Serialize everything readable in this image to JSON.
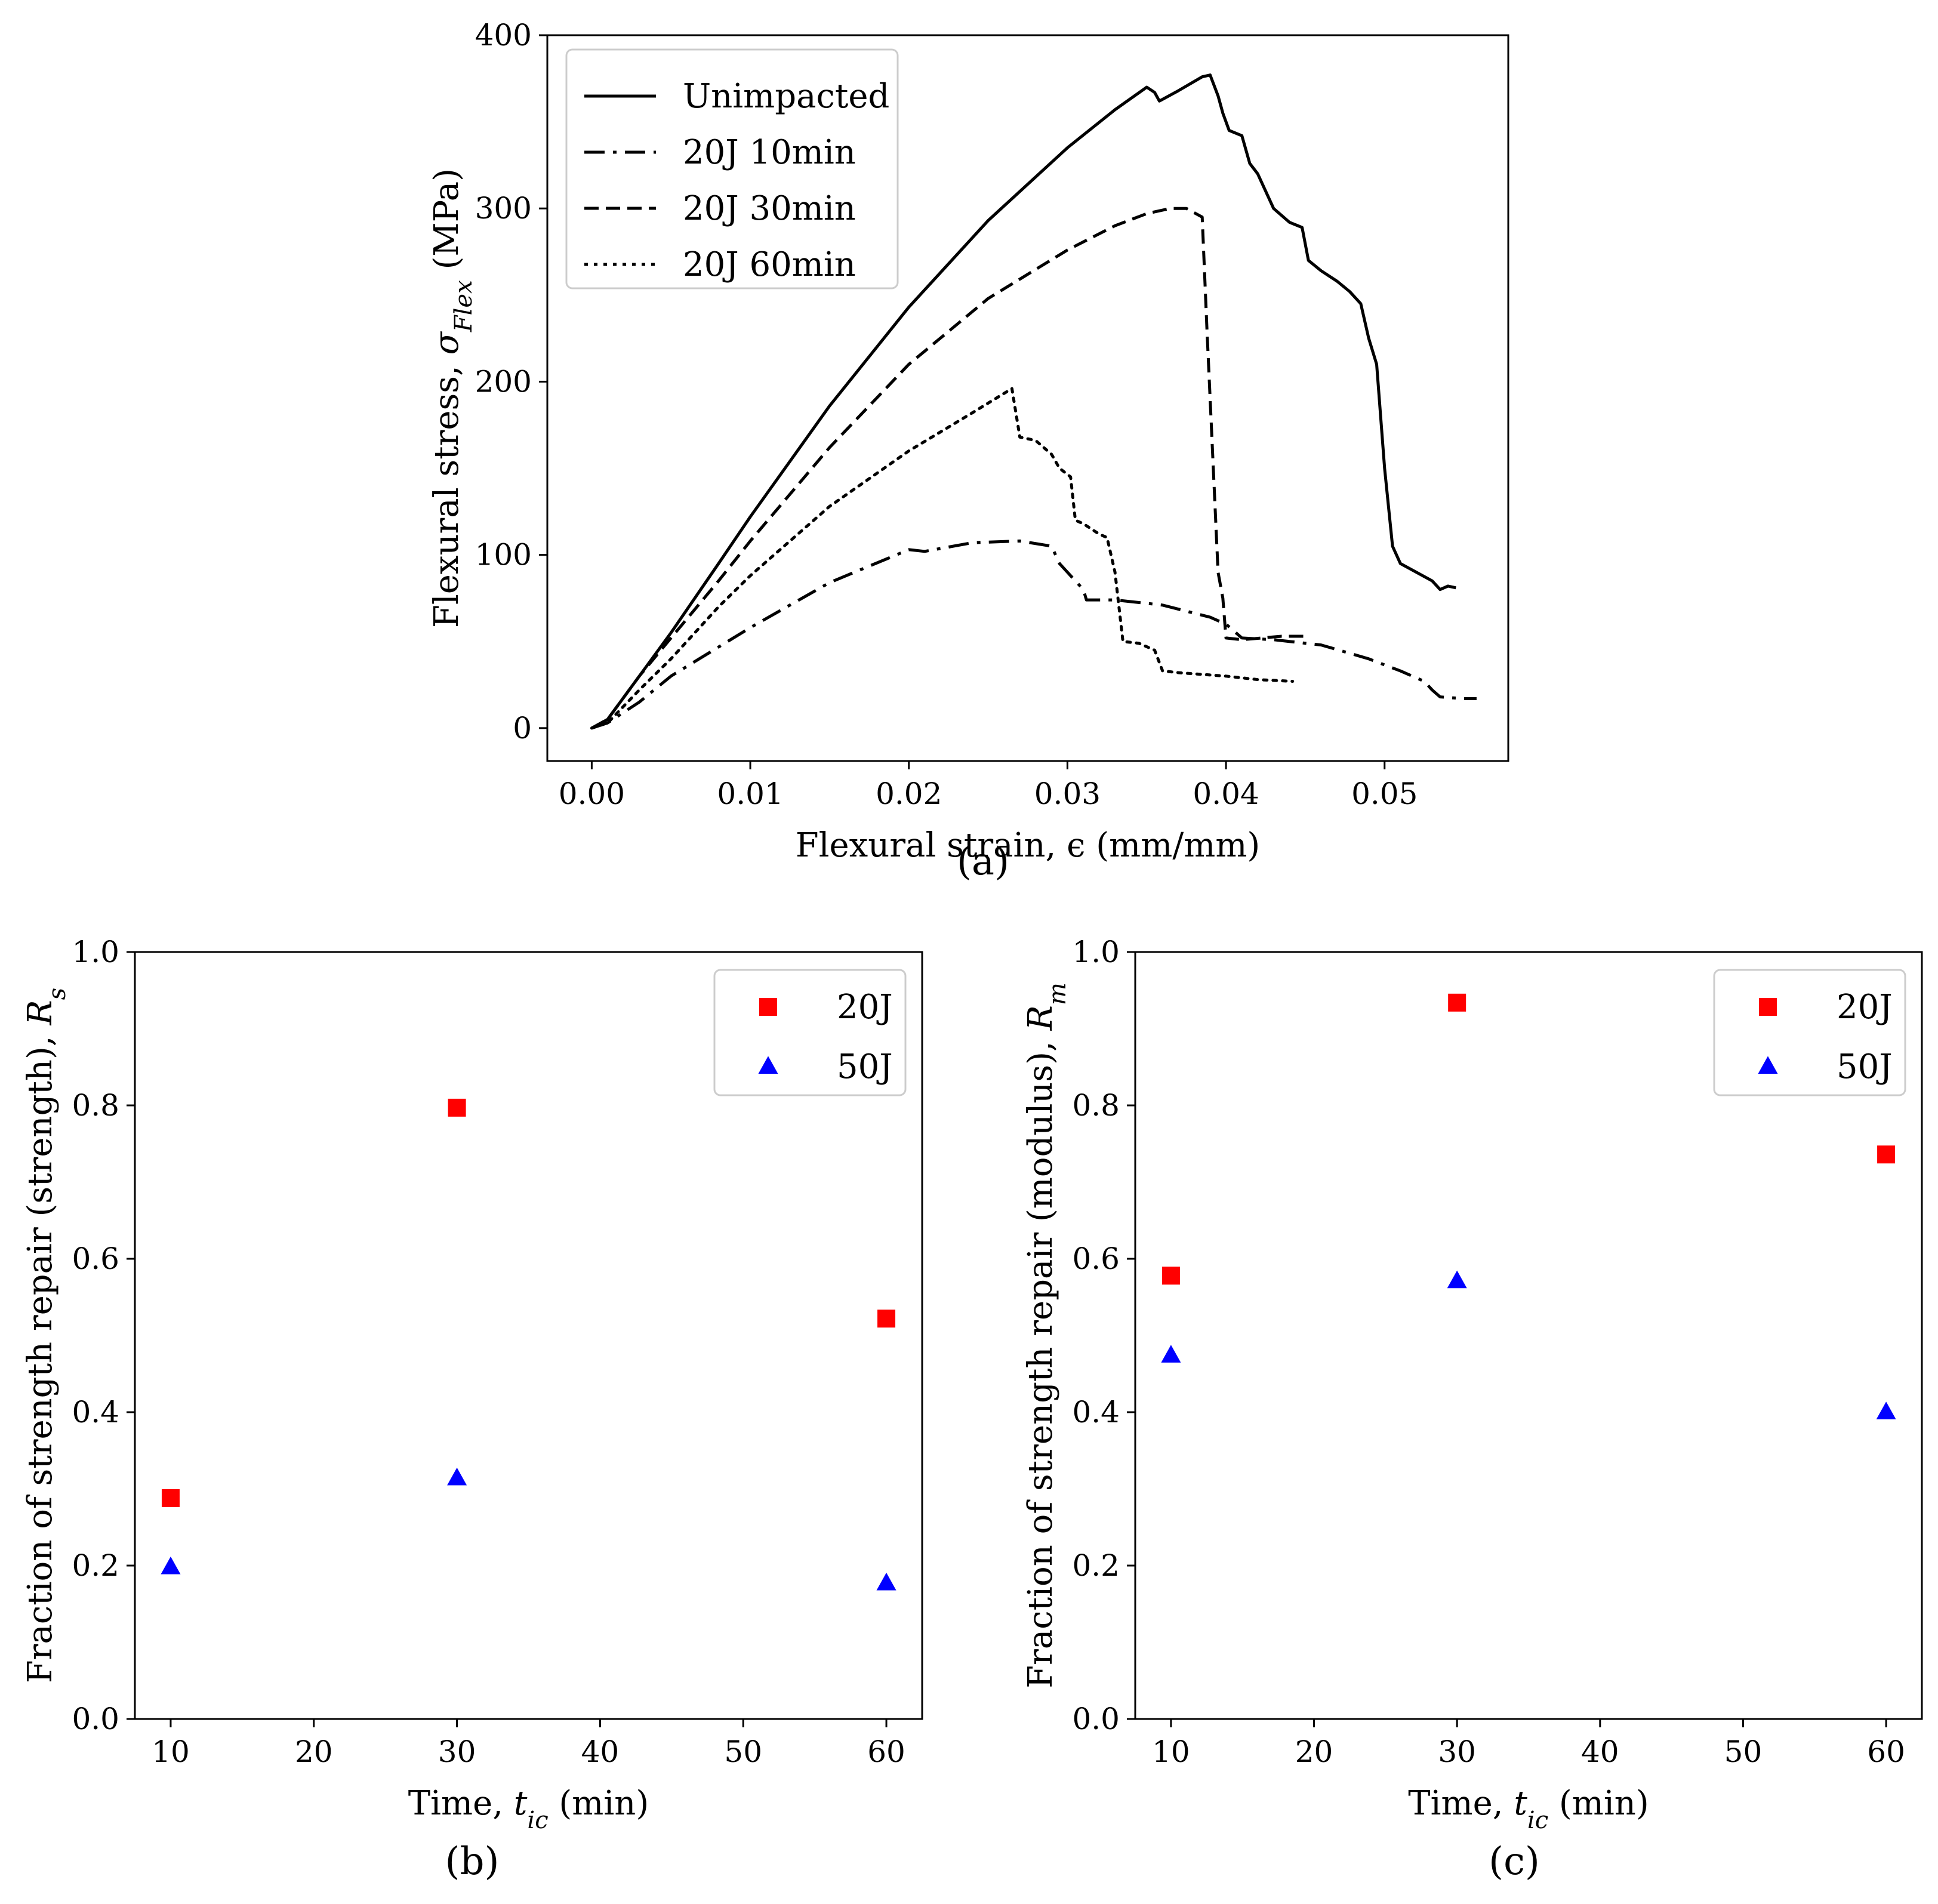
{
  "chart_data": [
    {
      "type": "line",
      "caption": "(a)",
      "xlabel": "Flexural strain, ϵ (mm/mm)",
      "ylabel": "Flexural stress, σFlex (MPa)",
      "ylabel_parts": {
        "main": "Flexural stress,  ",
        "sym": "σ",
        "sub": "Flex",
        "unit": " (MPa)"
      },
      "xlim": [
        -0.0028,
        0.0578
      ],
      "ylim": [
        -19,
        400
      ],
      "xticks": [
        0.0,
        0.01,
        0.02,
        0.03,
        0.04,
        0.05
      ],
      "xtick_labels": [
        "0.00",
        "0.01",
        "0.02",
        "0.03",
        "0.04",
        "0.05"
      ],
      "yticks": [
        0,
        100,
        200,
        300,
        400
      ],
      "ytick_labels": [
        "0",
        "100",
        "200",
        "300",
        "400"
      ],
      "legend": "top-left",
      "grid": false,
      "series": [
        {
          "name": "Unimpacted",
          "dash": "solid",
          "points": [
            [
              0,
              0
            ],
            [
              0.001,
              5
            ],
            [
              0.003,
              30
            ],
            [
              0.005,
              55
            ],
            [
              0.008,
              95
            ],
            [
              0.01,
              122
            ],
            [
              0.015,
              186
            ],
            [
              0.02,
              243
            ],
            [
              0.025,
              293
            ],
            [
              0.03,
              335
            ],
            [
              0.033,
              357
            ],
            [
              0.035,
              370
            ],
            [
              0.0355,
              367
            ],
            [
              0.0358,
              362
            ],
            [
              0.037,
              368
            ],
            [
              0.0385,
              376
            ],
            [
              0.039,
              377
            ],
            [
              0.0395,
              365
            ],
            [
              0.0398,
              355
            ],
            [
              0.0402,
              345
            ],
            [
              0.041,
              342
            ],
            [
              0.0415,
              326
            ],
            [
              0.042,
              320
            ],
            [
              0.043,
              300
            ],
            [
              0.044,
              292
            ],
            [
              0.0448,
              289
            ],
            [
              0.0452,
              270
            ],
            [
              0.046,
              264
            ],
            [
              0.047,
              258
            ],
            [
              0.0478,
              252
            ],
            [
              0.0485,
              245
            ],
            [
              0.049,
              225
            ],
            [
              0.0495,
              210
            ],
            [
              0.05,
              150
            ],
            [
              0.0505,
              105
            ],
            [
              0.051,
              95
            ],
            [
              0.052,
              90
            ],
            [
              0.053,
              85
            ],
            [
              0.0535,
              80
            ],
            [
              0.054,
              82
            ],
            [
              0.0545,
              81
            ]
          ]
        },
        {
          "name": "20J 10min",
          "dash": "dashdot",
          "points": [
            [
              0,
              0
            ],
            [
              0.001,
              3
            ],
            [
              0.003,
              15
            ],
            [
              0.005,
              30
            ],
            [
              0.01,
              58
            ],
            [
              0.015,
              84
            ],
            [
              0.02,
              103
            ],
            [
              0.021,
              102
            ],
            [
              0.024,
              107
            ],
            [
              0.027,
              108
            ],
            [
              0.029,
              105
            ],
            [
              0.0295,
              95
            ],
            [
              0.03,
              90
            ],
            [
              0.031,
              80
            ],
            [
              0.0312,
              74
            ],
            [
              0.033,
              74
            ],
            [
              0.036,
              71
            ],
            [
              0.039,
              64
            ],
            [
              0.04,
              60
            ],
            [
              0.041,
              52
            ],
            [
              0.043,
              51
            ],
            [
              0.046,
              48
            ],
            [
              0.049,
              40
            ],
            [
              0.051,
              33
            ],
            [
              0.0525,
              27
            ],
            [
              0.053,
              22
            ],
            [
              0.0535,
              18
            ],
            [
              0.055,
              17
            ],
            [
              0.0558,
              17
            ]
          ]
        },
        {
          "name": "20J 30min",
          "dash": "dashed",
          "points": [
            [
              0,
              0
            ],
            [
              0.001,
              5
            ],
            [
              0.003,
              30
            ],
            [
              0.005,
              52
            ],
            [
              0.008,
              85
            ],
            [
              0.01,
              108
            ],
            [
              0.015,
              162
            ],
            [
              0.02,
              210
            ],
            [
              0.025,
              248
            ],
            [
              0.03,
              276
            ],
            [
              0.033,
              290
            ],
            [
              0.035,
              297
            ],
            [
              0.0365,
              300
            ],
            [
              0.0375,
              300
            ],
            [
              0.0385,
              295
            ],
            [
              0.0388,
              230
            ],
            [
              0.0392,
              150
            ],
            [
              0.0395,
              90
            ],
            [
              0.0398,
              75
            ],
            [
              0.04,
              52
            ],
            [
              0.041,
              51
            ],
            [
              0.0435,
              53
            ],
            [
              0.045,
              53
            ]
          ]
        },
        {
          "name": "20J 60min",
          "dash": "dotted",
          "points": [
            [
              0,
              0
            ],
            [
              0.001,
              3
            ],
            [
              0.003,
              22
            ],
            [
              0.005,
              40
            ],
            [
              0.008,
              70
            ],
            [
              0.01,
              88
            ],
            [
              0.015,
              128
            ],
            [
              0.02,
              160
            ],
            [
              0.024,
              182
            ],
            [
              0.0265,
              196
            ],
            [
              0.027,
              168
            ],
            [
              0.028,
              166
            ],
            [
              0.029,
              158
            ],
            [
              0.0295,
              150
            ],
            [
              0.0302,
              145
            ],
            [
              0.0305,
              120
            ],
            [
              0.031,
              118
            ],
            [
              0.032,
              112
            ],
            [
              0.0325,
              110
            ],
            [
              0.033,
              90
            ],
            [
              0.0335,
              50
            ],
            [
              0.0345,
              49
            ],
            [
              0.0355,
              45
            ],
            [
              0.036,
              33
            ],
            [
              0.037,
              32
            ],
            [
              0.04,
              30
            ],
            [
              0.042,
              28
            ],
            [
              0.0442,
              27
            ]
          ]
        }
      ]
    },
    {
      "type": "scatter",
      "caption": "(b)",
      "xlabel": "Time, tic (min)",
      "xlabel_parts": {
        "main": "Time, ",
        "sym": "t",
        "sub": "ic",
        "unit": " (min)"
      },
      "ylabel": "Fraction of strength repair (strength), Rs",
      "ylabel_parts": {
        "main": "Fraction of strength repair (strength),  ",
        "sym": "R",
        "sub": "s",
        "unit": ""
      },
      "xlim": [
        7.5,
        62.5
      ],
      "ylim": [
        0.0,
        1.0
      ],
      "xticks": [
        10,
        20,
        30,
        40,
        50,
        60
      ],
      "yticks": [
        0.0,
        0.2,
        0.4,
        0.6,
        0.8,
        1.0
      ],
      "ytick_labels": [
        "0.0",
        "0.2",
        "0.4",
        "0.6",
        "0.8",
        "1.0"
      ],
      "legend": "top-right",
      "grid": false,
      "series": [
        {
          "name": "20J",
          "marker": "square",
          "color": "#ff0000",
          "x": [
            10,
            30,
            60
          ],
          "y": [
            0.288,
            0.797,
            0.522
          ]
        },
        {
          "name": "50J",
          "marker": "triangle",
          "color": "#0000ff",
          "x": [
            10,
            30,
            60
          ],
          "y": [
            0.198,
            0.314,
            0.177
          ]
        }
      ]
    },
    {
      "type": "scatter",
      "caption": "(c)",
      "xlabel": "Time, tic (min)",
      "xlabel_parts": {
        "main": "Time, ",
        "sym": "t",
        "sub": "ic",
        "unit": " (min)"
      },
      "ylabel": "Fraction of strength repair (modulus), Rm",
      "ylabel_parts": {
        "main": "Fraction of strength repair (modulus),  ",
        "sym": "R",
        "sub": "m",
        "unit": ""
      },
      "xlim": [
        7.5,
        62.5
      ],
      "ylim": [
        0.0,
        1.0
      ],
      "xticks": [
        10,
        20,
        30,
        40,
        50,
        60
      ],
      "yticks": [
        0.0,
        0.2,
        0.4,
        0.6,
        0.8,
        1.0
      ],
      "ytick_labels": [
        "0.0",
        "0.2",
        "0.4",
        "0.6",
        "0.8",
        "1.0"
      ],
      "legend": "top-right",
      "grid": false,
      "series": [
        {
          "name": "20J",
          "marker": "square",
          "color": "#ff0000",
          "x": [
            10,
            30,
            60
          ],
          "y": [
            0.578,
            0.934,
            0.736
          ]
        },
        {
          "name": "50J",
          "marker": "triangle",
          "color": "#0000ff",
          "x": [
            10,
            30,
            60
          ],
          "y": [
            0.474,
            0.571,
            0.4
          ]
        }
      ]
    }
  ]
}
